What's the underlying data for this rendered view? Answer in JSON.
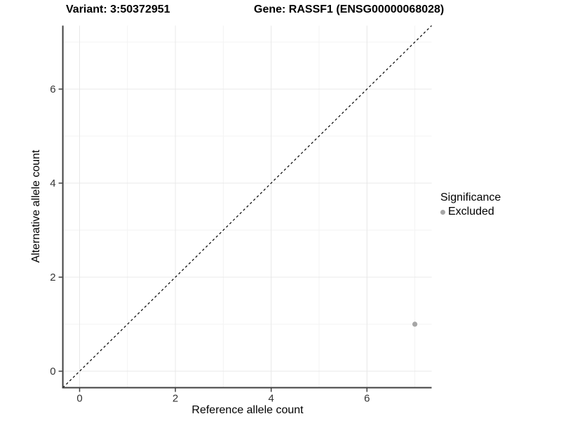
{
  "titles": {
    "variant": "Variant: 3:50372951",
    "gene": "Gene: RASSF1 (ENSG00000068028)"
  },
  "axes": {
    "x_label": "Reference allele count",
    "y_label": "Alternative allele count"
  },
  "legend": {
    "title": "Significance",
    "items": [
      {
        "label": "Excluded",
        "color": "#a6a6a6"
      }
    ]
  },
  "chart_data": {
    "type": "scatter",
    "title_left": "Variant: 3:50372951",
    "title_right": "Gene: RASSF1 (ENSG00000068028)",
    "xlabel": "Reference allele count",
    "ylabel": "Alternative allele count",
    "xlim": [
      -0.35,
      7.35
    ],
    "ylim": [
      -0.35,
      7.35
    ],
    "x_ticks": [
      0,
      2,
      4,
      6
    ],
    "y_ticks": [
      0,
      2,
      4,
      6
    ],
    "x_minor_ticks": [
      1,
      3,
      5,
      7
    ],
    "y_minor_ticks": [
      1,
      3,
      5,
      7
    ],
    "grid": true,
    "legend_position": "right",
    "series": [
      {
        "name": "Excluded",
        "color": "#a6a6a6",
        "points": [
          {
            "x": 7,
            "y": 1
          }
        ]
      }
    ],
    "reference_line": {
      "type": "identity",
      "style": "dashed",
      "color": "#000000"
    },
    "colors": {
      "axis_line": "#404040",
      "tick_label": "#333333",
      "grid_major": "#e8e8e8",
      "grid_minor": "#f3f3f3"
    }
  }
}
